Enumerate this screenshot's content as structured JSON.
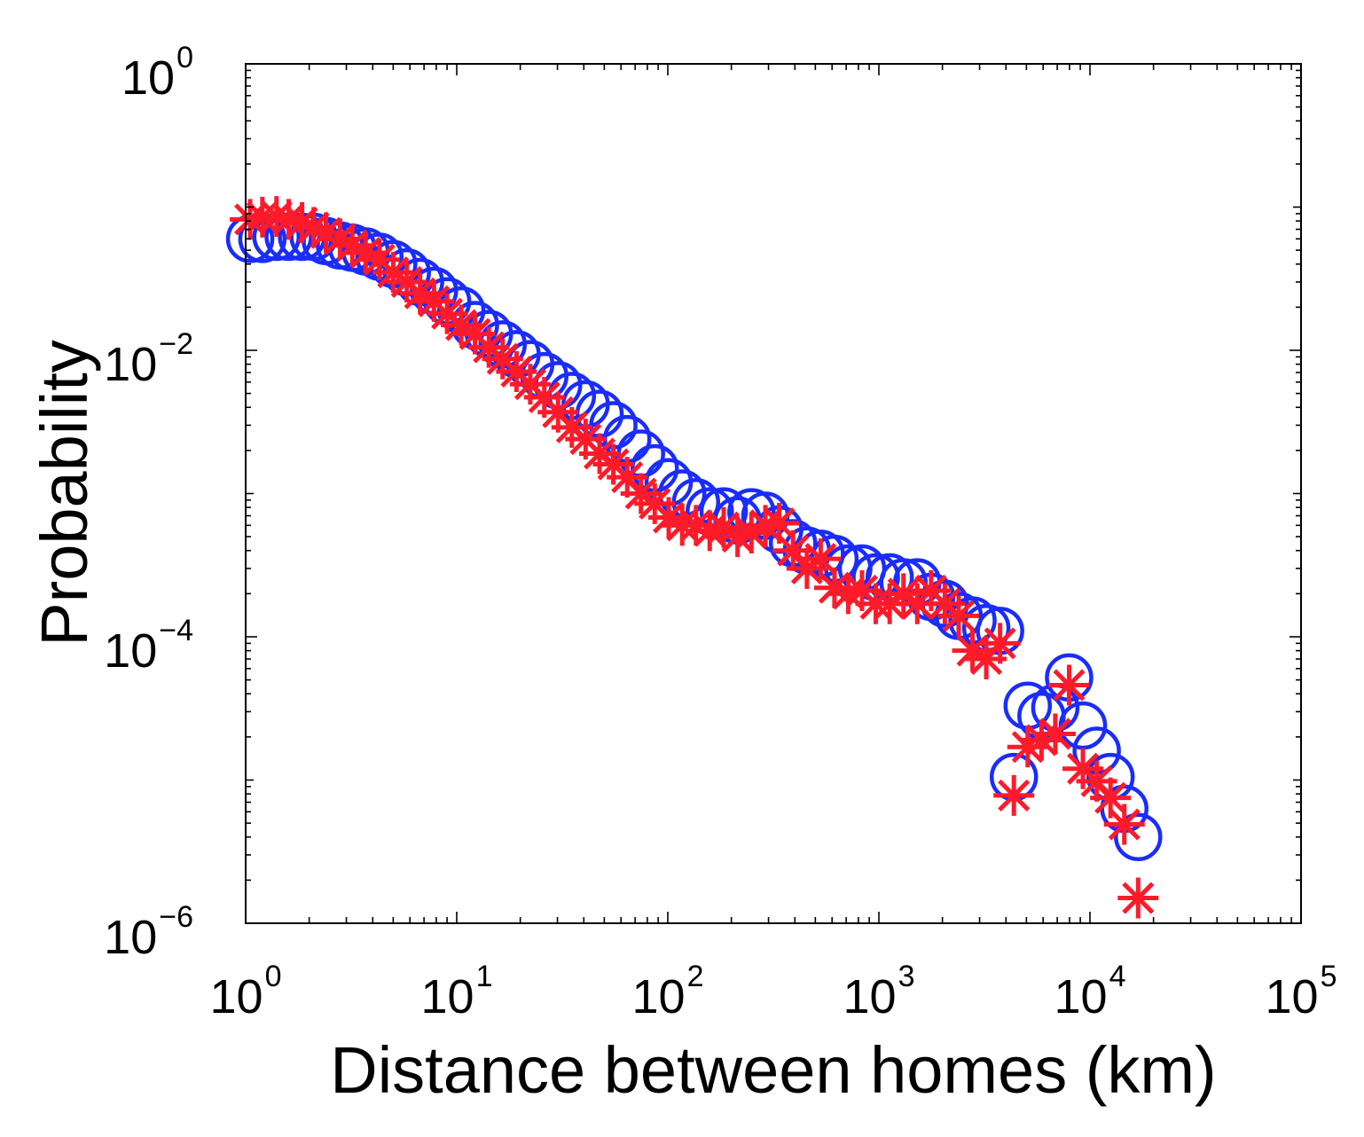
{
  "chart_data": {
    "type": "scatter",
    "xlabel": "Distance between homes (km)",
    "ylabel": "Probability",
    "xscale": "log",
    "yscale": "log",
    "xlim": [
      1,
      100000
    ],
    "ylim": [
      1e-06,
      1
    ],
    "grid": false,
    "x_ticks": [
      {
        "base": "10",
        "exp": "0",
        "value": 1
      },
      {
        "base": "10",
        "exp": "1",
        "value": 10
      },
      {
        "base": "10",
        "exp": "2",
        "value": 100
      },
      {
        "base": "10",
        "exp": "3",
        "value": 1000
      },
      {
        "base": "10",
        "exp": "4",
        "value": 10000
      },
      {
        "base": "10",
        "exp": "5",
        "value": 100000
      }
    ],
    "y_ticks": [
      {
        "base": "10",
        "exp": "0",
        "value": 1
      },
      {
        "base": "10",
        "exp": "−2",
        "value": 0.01
      },
      {
        "base": "10",
        "exp": "−4",
        "value": 0.0001
      },
      {
        "base": "10",
        "exp": "−6",
        "value": 1e-06
      }
    ],
    "series": [
      {
        "marker": "circle",
        "color": "#1a2cff",
        "points": [
          [
            1.05,
            0.06
          ],
          [
            1.2,
            0.06
          ],
          [
            1.4,
            0.062
          ],
          [
            1.6,
            0.062
          ],
          [
            1.85,
            0.062
          ],
          [
            2.1,
            0.062
          ],
          [
            2.4,
            0.058
          ],
          [
            2.8,
            0.054
          ],
          [
            3.2,
            0.052
          ],
          [
            3.7,
            0.049
          ],
          [
            4.3,
            0.045
          ],
          [
            5.0,
            0.04
          ],
          [
            5.8,
            0.035
          ],
          [
            6.7,
            0.03
          ],
          [
            7.8,
            0.026
          ],
          [
            9.0,
            0.022
          ],
          [
            10.5,
            0.019
          ],
          [
            12.2,
            0.015
          ],
          [
            14.2,
            0.013
          ],
          [
            16.5,
            0.011
          ],
          [
            19.2,
            0.0094
          ],
          [
            22.3,
            0.008
          ],
          [
            26.0,
            0.0066
          ],
          [
            30.2,
            0.0057
          ],
          [
            35.1,
            0.0048
          ],
          [
            40.8,
            0.0042
          ],
          [
            47.5,
            0.0036
          ],
          [
            55.2,
            0.003
          ],
          [
            64.2,
            0.0024
          ],
          [
            74.6,
            0.0019
          ],
          [
            86.7,
            0.0015
          ],
          [
            101,
            0.0012
          ],
          [
            117,
            0.001
          ],
          [
            136,
            0.00087
          ],
          [
            158,
            0.00075
          ],
          [
            184,
            0.00075
          ],
          [
            214,
            0.00065
          ],
          [
            249,
            0.00074
          ],
          [
            290,
            0.0007
          ],
          [
            337,
            0.00056
          ],
          [
            392,
            0.00045
          ],
          [
            456,
            0.0004
          ],
          [
            530,
            0.00038
          ],
          [
            616,
            0.00035
          ],
          [
            716,
            0.0003
          ],
          [
            832,
            0.0003
          ],
          [
            967,
            0.00026
          ],
          [
            1125,
            0.00026
          ],
          [
            1308,
            0.00024
          ],
          [
            1520,
            0.00024
          ],
          [
            1767,
            0.00019
          ],
          [
            2054,
            0.00017
          ],
          [
            2388,
            0.00014
          ],
          [
            2776,
            0.00013
          ],
          [
            3227,
            0.000115
          ],
          [
            3751,
            0.00011
          ],
          [
            4361,
            1.05e-05
          ],
          [
            5070,
            3.3e-05
          ],
          [
            5894,
            2.8e-05
          ],
          [
            6852,
            3.2e-05
          ],
          [
            7965,
            5.2e-05
          ],
          [
            9260,
            2.4e-05
          ],
          [
            10765,
            1.6e-05
          ],
          [
            12514,
            1.05e-05
          ],
          [
            14548,
            6.3e-06
          ],
          [
            16912,
            4e-06
          ]
        ]
      },
      {
        "marker": "star",
        "color": "#ff1a2a",
        "points": [
          [
            1.05,
            0.082
          ],
          [
            1.2,
            0.085
          ],
          [
            1.4,
            0.086
          ],
          [
            1.6,
            0.082
          ],
          [
            1.85,
            0.078
          ],
          [
            2.1,
            0.072
          ],
          [
            2.4,
            0.066
          ],
          [
            2.8,
            0.06
          ],
          [
            3.2,
            0.054
          ],
          [
            3.7,
            0.048
          ],
          [
            4.3,
            0.043
          ],
          [
            5.0,
            0.035
          ],
          [
            5.8,
            0.03
          ],
          [
            6.7,
            0.025
          ],
          [
            7.8,
            0.022
          ],
          [
            9.0,
            0.018
          ],
          [
            10.5,
            0.015
          ],
          [
            12.2,
            0.013
          ],
          [
            14.2,
            0.0105
          ],
          [
            16.5,
            0.0087
          ],
          [
            19.2,
            0.0071
          ],
          [
            22.3,
            0.0058
          ],
          [
            26.0,
            0.0047
          ],
          [
            30.2,
            0.0037
          ],
          [
            35.1,
            0.0029
          ],
          [
            40.8,
            0.0024
          ],
          [
            47.5,
            0.0019
          ],
          [
            55.2,
            0.0016
          ],
          [
            64.2,
            0.0013
          ],
          [
            74.6,
            0.001
          ],
          [
            86.7,
            0.00085
          ],
          [
            101,
            0.00068
          ],
          [
            117,
            0.0006
          ],
          [
            136,
            0.0006
          ],
          [
            158,
            0.00055
          ],
          [
            184,
            0.00058
          ],
          [
            214,
            0.0005
          ],
          [
            249,
            0.00053
          ],
          [
            290,
            0.0006
          ],
          [
            337,
            0.00062
          ],
          [
            392,
            0.0004
          ],
          [
            456,
            0.0003
          ],
          [
            530,
            0.00035
          ],
          [
            616,
            0.00022
          ],
          [
            716,
            0.0002
          ],
          [
            832,
            0.00021
          ],
          [
            967,
            0.00017
          ],
          [
            1125,
            0.00017
          ],
          [
            1308,
            0.0002
          ],
          [
            1520,
            0.00017
          ],
          [
            1767,
            0.00021
          ],
          [
            2054,
            0.00017
          ],
          [
            2388,
            0.00014
          ],
          [
            2776,
            8e-05
          ],
          [
            3227,
            7e-05
          ],
          [
            3751,
            9e-05
          ],
          [
            4361,
            7.8e-06
          ],
          [
            5070,
            1.7e-05
          ],
          [
            5894,
            1.9e-05
          ],
          [
            6852,
            2.1e-05
          ],
          [
            7965,
            4.6e-05
          ],
          [
            9260,
            1.2e-05
          ],
          [
            10765,
            9.8e-06
          ],
          [
            12514,
            7.5e-06
          ],
          [
            14548,
            4.9e-06
          ],
          [
            16912,
            1.5e-06
          ]
        ]
      }
    ]
  }
}
